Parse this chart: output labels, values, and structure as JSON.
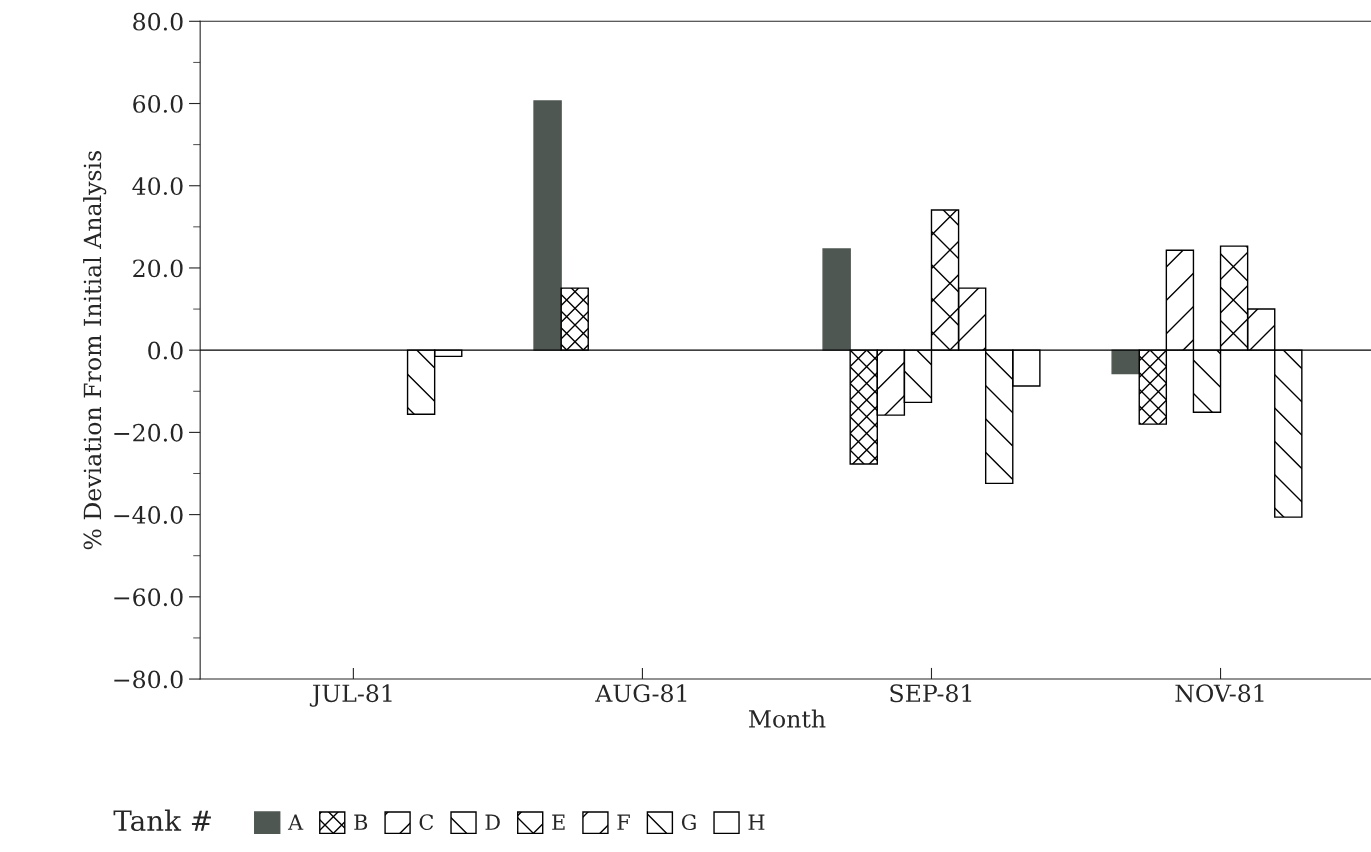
{
  "chart_data": {
    "type": "bar",
    "xlabel": "Month",
    "ylabel": "% Deviation From Initial Analysis",
    "legend_title": "Tank #",
    "categories": [
      "JUL-81",
      "AUG-81",
      "SEP-81",
      "NOV-81"
    ],
    "series": [
      {
        "name": "A",
        "color": "#4f5752",
        "values": [
          null,
          60.6,
          24.6,
          -5.7
        ]
      },
      {
        "name": "B",
        "color": "#000000",
        "values": [
          null,
          15.1,
          -27.7,
          -18.0
        ]
      },
      {
        "name": "C",
        "color": "#000000",
        "values": [
          null,
          null,
          -15.8,
          24.3
        ]
      },
      {
        "name": "D",
        "color": "#000000",
        "values": [
          null,
          null,
          -12.7,
          -15.1
        ]
      },
      {
        "name": "E",
        "color": "#000000",
        "values": [
          null,
          null,
          34.1,
          25.3
        ]
      },
      {
        "name": "F",
        "color": "#000000",
        "values": [
          null,
          null,
          15.1,
          10.0
        ]
      },
      {
        "name": "G",
        "color": "#000000",
        "values": [
          -15.6,
          null,
          -32.4,
          -40.6
        ]
      },
      {
        "name": "H",
        "color": "#000000",
        "values": [
          -1.5,
          null,
          -8.7,
          null
        ]
      }
    ],
    "ylim": [
      -80,
      80
    ],
    "yticks": [
      {
        "value": -80,
        "label": "−80.0"
      },
      {
        "value": -60,
        "label": "−60.0"
      },
      {
        "value": -40,
        "label": "−40.0"
      },
      {
        "value": -20,
        "label": "−20.0"
      },
      {
        "value": 0,
        "label": "0.0"
      },
      {
        "value": 20,
        "label": "20.0"
      },
      {
        "value": 40,
        "label": "40.0"
      },
      {
        "value": 60,
        "label": "60.0"
      },
      {
        "value": 80,
        "label": "80.0"
      }
    ],
    "ref_lines": [
      {
        "axis": "y",
        "value": 0,
        "color": "#000000"
      }
    ],
    "legend": "bottom"
  }
}
